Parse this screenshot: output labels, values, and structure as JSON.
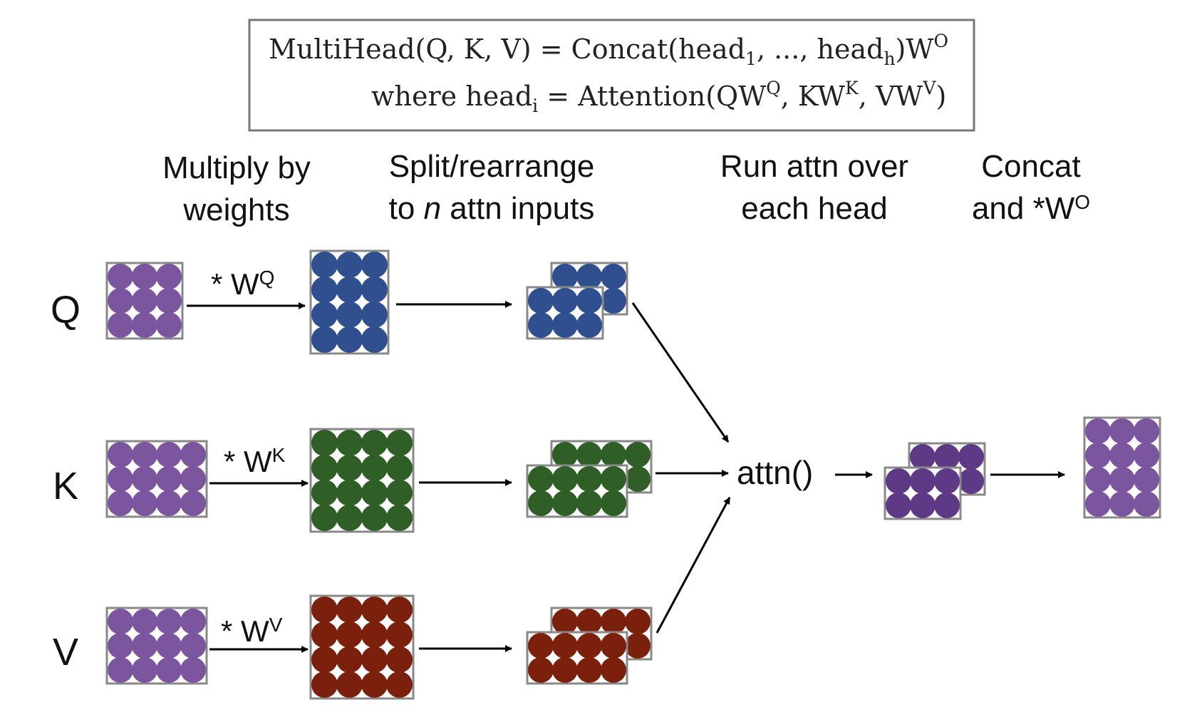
{
  "formula": {
    "line1": {
      "lhs": "MultiHead(Q, K, V) = Concat(head",
      "sub1": "1",
      "mid": ", ..., head",
      "subh": "h",
      "end": ")W",
      "sup": "O"
    },
    "line2": {
      "prefix": "where head",
      "sub_i": "i",
      "eq": " = Attention(QW",
      "q_sup": "Q",
      "kw": ", KW",
      "k_sup": "K",
      "vw": ", VW",
      "v_sup": "V",
      "close": ")"
    }
  },
  "headers": {
    "multiply": [
      "Multiply by",
      "weights"
    ],
    "split": [
      "Split/rearrange",
      "to ",
      "n",
      " attn inputs"
    ],
    "run": [
      "Run attn over",
      "each head"
    ],
    "concat": [
      "Concat",
      "and *W",
      "O"
    ]
  },
  "rows": [
    {
      "label": "Q",
      "weight": "* W",
      "weight_sup": "Q",
      "color": "#2f4f8f"
    },
    {
      "label": "K",
      "weight": "* W",
      "weight_sup": "K",
      "color": "#2f5e26"
    },
    {
      "label": "V",
      "weight": "* W",
      "weight_sup": "V",
      "color": "#7a200c"
    }
  ],
  "attn_label": "attn()",
  "colors": {
    "input": "#7b559e",
    "output": "#5e3a86",
    "frame": "#888888"
  }
}
